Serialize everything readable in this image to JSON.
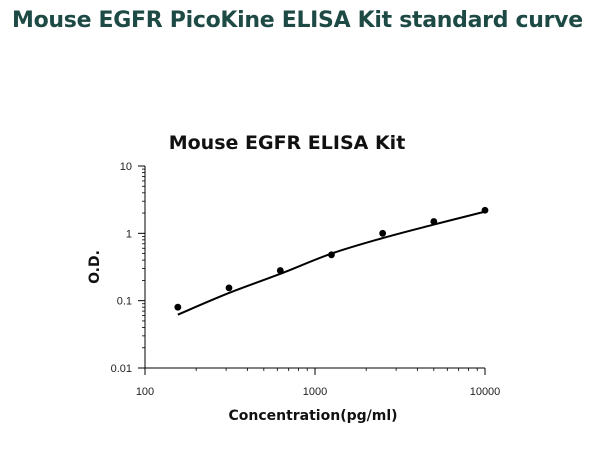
{
  "page": {
    "heading": "Mouse EGFR PicoKine ELISA Kit standard curve"
  },
  "chart_data": {
    "type": "scatter",
    "title": "Mouse EGFR ELISA Kit",
    "xlabel": "Concentration(pg/ml)",
    "ylabel": "O.D.",
    "xscale": "log",
    "yscale": "log",
    "xlim": [
      100,
      10000
    ],
    "ylim": [
      0.01,
      10
    ],
    "x_ticks": [
      100,
      1000,
      10000
    ],
    "x_tick_labels": [
      "100",
      "1000",
      "10000"
    ],
    "y_ticks": [
      0.01,
      0.1,
      1,
      10
    ],
    "y_tick_labels": [
      "0.01",
      "0.1",
      "1",
      "10"
    ],
    "grid": false,
    "points": {
      "x": [
        156,
        312,
        625,
        1250,
        2500,
        5000,
        10000
      ],
      "y": [
        0.08,
        0.155,
        0.28,
        0.48,
        1.0,
        1.5,
        2.2
      ]
    },
    "fit_curve": {
      "x": [
        156,
        312,
        625,
        1250,
        2500,
        5000,
        10000
      ],
      "y": [
        0.062,
        0.13,
        0.25,
        0.5,
        0.85,
        1.35,
        2.1
      ]
    },
    "colors": {
      "points": "#000000",
      "curve": "#000000",
      "heading": "#1e4a46"
    }
  }
}
